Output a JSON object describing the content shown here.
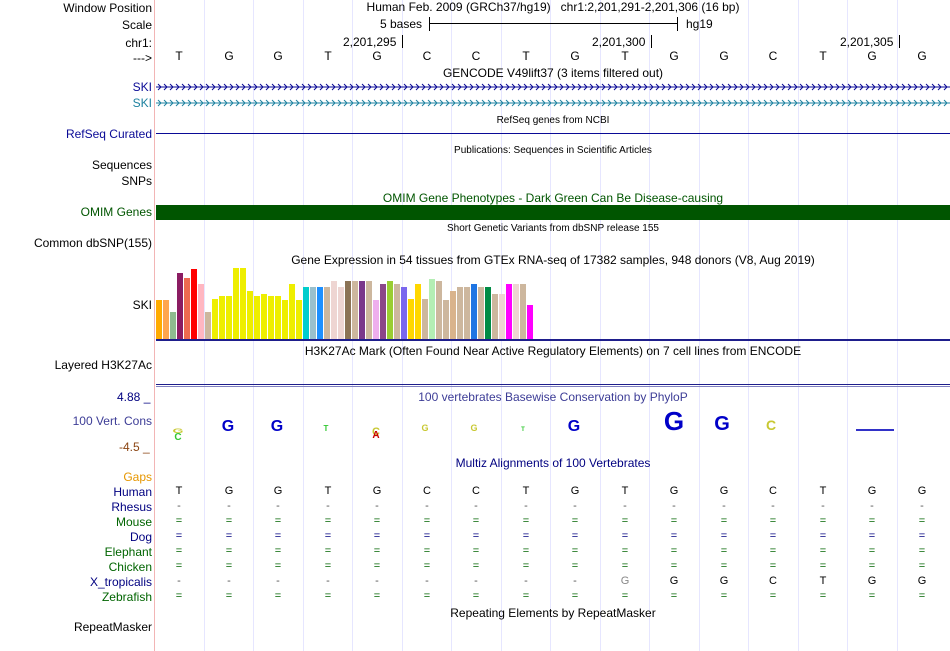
{
  "header": {
    "window_position_label": "Window Position",
    "scale_label": "Scale",
    "chr_label": "chr1:",
    "strand_label": "--->",
    "assembly_text": "Human Feb. 2009 (GRCh37/hg19)   chr1:2,201,291-2,201,306 (16 bp)",
    "scale_text": "5 bases",
    "scale_db": "hg19",
    "ticks": [
      "2,201,295",
      "2,201,300",
      "2,201,305"
    ],
    "bases": [
      "T",
      "G",
      "G",
      "T",
      "G",
      "C",
      "C",
      "T",
      "G",
      "T",
      "G",
      "G",
      "C",
      "T",
      "G",
      "G"
    ]
  },
  "tracks": {
    "gencode_title": "GENCODE V49lift37 (3 items filtered out)",
    "gencode_items": [
      "SKI",
      "SKI"
    ],
    "refseq_title": "RefSeq genes from NCBI",
    "refseq_label": "RefSeq Curated",
    "publications_title": "Publications: Sequences in Scientific Articles",
    "sequences_label": "Sequences",
    "snps_label": "SNPs",
    "omim_title": "OMIM Gene Phenotypes - Dark Green Can Be Disease-causing",
    "omim_label": "OMIM Genes",
    "dbsnp_title": "Short Genetic Variants from dbSNP release 155",
    "dbsnp_label": "Common dbSNP(155)",
    "gtex_title": "Gene Expression in 54 tissues from GTEx RNA-seq of 17382 samples, 948 donors (V8, Aug 2019)",
    "gtex_label": "SKI",
    "h3k27_title": "H3K27Ac Mark (Often Found Near Active Regulatory Elements) on 7 cell lines from ENCODE",
    "h3k27_label": "Layered H3K27Ac",
    "cons_title": "100 vertebrates Basewise Conservation by PhyloP",
    "cons_label": "100 Vert. Cons",
    "cons_max": "4.88 _",
    "cons_min": "-4.5 _",
    "multiz_title": "Multiz Alignments of 100 Vertebrates",
    "gaps_label": "Gaps",
    "repeat_title": "Repeating Elements by RepeatMasker",
    "repeat_label": "RepeatMasker"
  },
  "gtex": {
    "levels": [
      0.55,
      0.55,
      0.38,
      0.93,
      0.86,
      0.98,
      0.77,
      0.38,
      0.57,
      0.6,
      0.6,
      1.0,
      1.0,
      0.68,
      0.6,
      0.63,
      0.6,
      0.6,
      0.55,
      0.77,
      0.55,
      0.73,
      0.73,
      0.73,
      0.73,
      0.82,
      0.73,
      0.82,
      0.82,
      0.82,
      0.82,
      0.55,
      0.77,
      0.82,
      0.77,
      0.73,
      0.57,
      0.77,
      0.57,
      0.85,
      0.82,
      0.55,
      0.68,
      0.73,
      0.73,
      0.77,
      0.73,
      0.73,
      0.63,
      0.63,
      0.77,
      0.77,
      0.77,
      0.48
    ],
    "colors": [
      "#ffaa00",
      "#ffa54f",
      "#8fbc8f",
      "#8b1c62",
      "#ee6a50",
      "#ff0000",
      "#ffb6c1",
      "#cdb79e",
      "#eeee00",
      "#eeee00",
      "#eeee00",
      "#eeee00",
      "#eeee00",
      "#eeee00",
      "#eeee00",
      "#eeee00",
      "#eeee00",
      "#eeee00",
      "#eeee00",
      "#eeee00",
      "#eeee00",
      "#00cdcd",
      "#9ac0cd",
      "#1e90ff",
      "#cdb79e",
      "#eed5d2",
      "#eed5d2",
      "#8b7355",
      "#cdb79e",
      "#7a378b",
      "#cdb79e",
      "#eeaeee",
      "#8b4789",
      "#9acd32",
      "#cdb79e",
      "#7a67ee",
      "#ffd700",
      "#ffd700",
      "#cdb79e",
      "#b4eeb4",
      "#cdb79e",
      "#cdb79e",
      "#d9b38c",
      "#cdb79e",
      "#cdb79e",
      "#1f75e3",
      "#cdb79e",
      "#008b45",
      "#cdb79e",
      "#eed5d2",
      "#ff00ff",
      "#eed5d2",
      "#cdb79e",
      "#ff00ff"
    ]
  },
  "species": [
    {
      "name": "Human",
      "color": "#000080",
      "row": [
        "T",
        "G",
        "G",
        "T",
        "G",
        "C",
        "C",
        "T",
        "G",
        "T",
        "G",
        "G",
        "C",
        "T",
        "G",
        "G"
      ]
    },
    {
      "name": "Rhesus",
      "color": "#000080",
      "row": [
        "-",
        "-",
        "-",
        "-",
        "-",
        "-",
        "-",
        "-",
        "-",
        "-",
        "-",
        "-",
        "-",
        "-",
        "-",
        "-"
      ]
    },
    {
      "name": "Mouse",
      "color": "#006400",
      "row": [
        "=",
        "=",
        "=",
        "=",
        "=",
        "=",
        "=",
        "=",
        "=",
        "=",
        "=",
        "=",
        "=",
        "=",
        "=",
        "="
      ]
    },
    {
      "name": "Dog",
      "color": "#000080",
      "row": [
        "=",
        "=",
        "=",
        "=",
        "=",
        "=",
        "=",
        "=",
        "=",
        "=",
        "=",
        "=",
        "=",
        "=",
        "=",
        "="
      ]
    },
    {
      "name": "Elephant",
      "color": "#006400",
      "row": [
        "=",
        "=",
        "=",
        "=",
        "=",
        "=",
        "=",
        "=",
        "=",
        "=",
        "=",
        "=",
        "=",
        "=",
        "=",
        "="
      ]
    },
    {
      "name": "Chicken",
      "color": "#006400",
      "row": [
        "=",
        "=",
        "=",
        "=",
        "=",
        "=",
        "=",
        "=",
        "=",
        "=",
        "=",
        "=",
        "=",
        "=",
        "=",
        "="
      ]
    },
    {
      "name": "X_tropicalis",
      "color": "#000080",
      "row": [
        "-",
        "-",
        "-",
        "-",
        "-",
        "-",
        "-",
        "-",
        "-",
        "G",
        "G",
        "G",
        "C",
        "T",
        "G",
        "G"
      ]
    },
    {
      "name": "Zebrafish",
      "color": "#006400",
      "row": [
        "=",
        "=",
        "=",
        "=",
        "=",
        "=",
        "=",
        "=",
        "=",
        "=",
        "=",
        "=",
        "=",
        "=",
        "=",
        "="
      ]
    }
  ],
  "colors": {
    "guideline": "#e6e6ff",
    "label_left_line": "#ff0000",
    "omim": "#005500",
    "gencode_main": "#0a0a96",
    "gencode_alt": "#1e82a0",
    "h3k27_line": "#1e1e8c",
    "cons_title": "#3c3c96",
    "cons_max": "#000080",
    "cons_min": "#8b4513",
    "gaps": "#e69600"
  }
}
